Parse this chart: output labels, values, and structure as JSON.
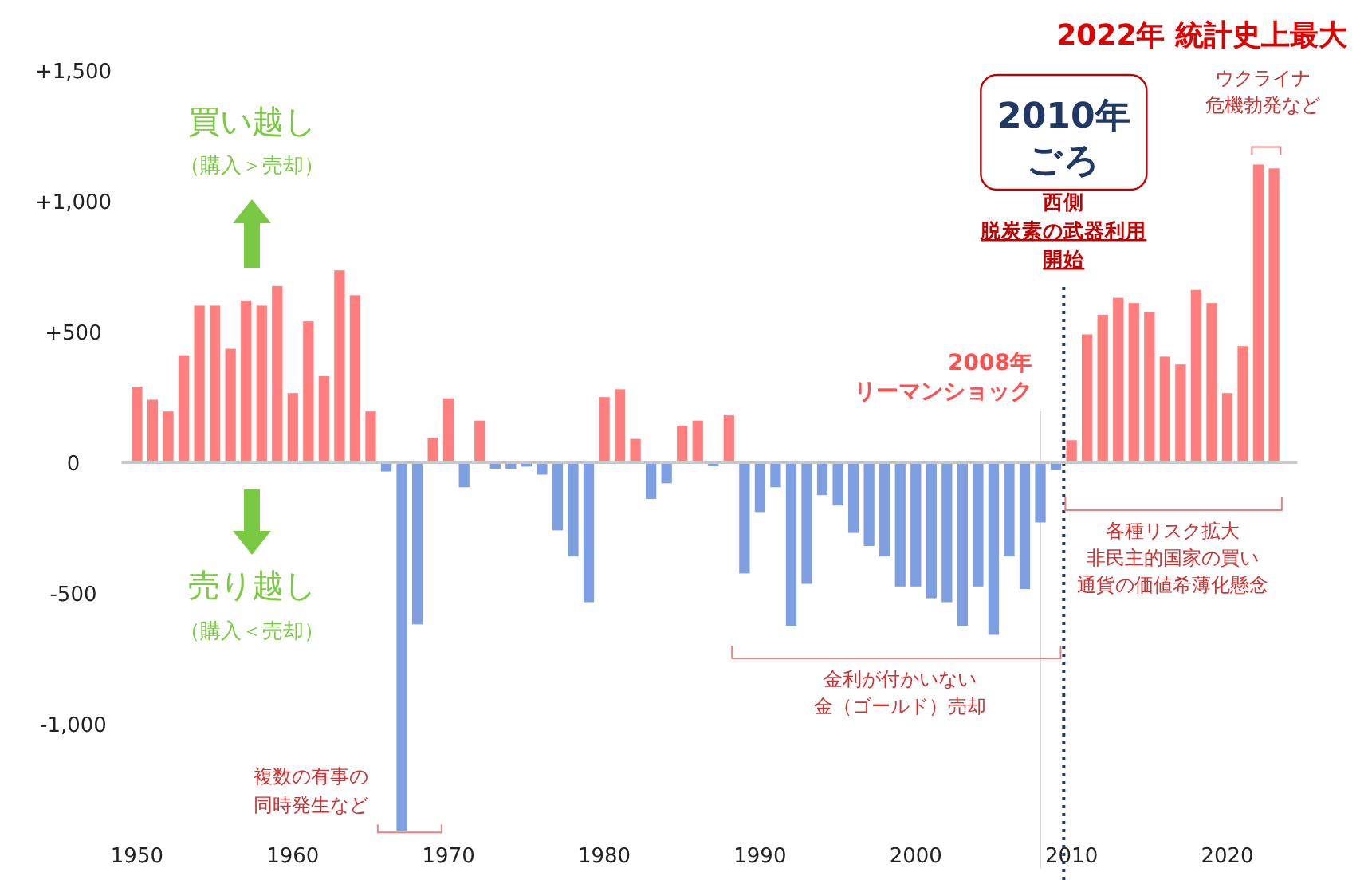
{
  "chart_data": {
    "type": "bar",
    "title": "2022年 統計史上最大",
    "x": [
      1950,
      1951,
      1952,
      1953,
      1954,
      1955,
      1956,
      1957,
      1958,
      1959,
      1960,
      1961,
      1962,
      1963,
      1964,
      1965,
      1966,
      1967,
      1968,
      1969,
      1970,
      1971,
      1972,
      1973,
      1974,
      1975,
      1976,
      1977,
      1978,
      1979,
      1980,
      1981,
      1982,
      1983,
      1984,
      1985,
      1986,
      1987,
      1988,
      1989,
      1990,
      1991,
      1992,
      1993,
      1994,
      1995,
      1996,
      1997,
      1998,
      1999,
      2000,
      2001,
      2002,
      2003,
      2004,
      2005,
      2006,
      2007,
      2008,
      2009,
      2010,
      2011,
      2012,
      2013,
      2014,
      2015,
      2016,
      2017,
      2018,
      2019,
      2020,
      2021,
      2022,
      2023
    ],
    "values": [
      290,
      240,
      195,
      410,
      600,
      600,
      435,
      620,
      600,
      675,
      265,
      540,
      330,
      735,
      640,
      195,
      -35,
      -1410,
      -620,
      95,
      245,
      -95,
      160,
      -24,
      -24,
      -16,
      -47,
      -260,
      -360,
      -535,
      250,
      280,
      90,
      -140,
      -80,
      140,
      160,
      -15,
      180,
      -425,
      -190,
      -95,
      -625,
      -465,
      -125,
      -165,
      -270,
      -320,
      -360,
      -475,
      -475,
      -520,
      -535,
      -625,
      -475,
      -660,
      -360,
      -485,
      -230,
      -30,
      85,
      490,
      565,
      630,
      610,
      575,
      405,
      375,
      660,
      610,
      265,
      445,
      1140,
      1125
    ],
    "colors": [
      "#ff7f7f",
      "#ff7f7f",
      "#ff7f7f",
      "#ff7f7f",
      "#ff7f7f",
      "#ff7f7f",
      "#ff7f7f",
      "#ff7f7f",
      "#ff7f7f",
      "#ff7f7f",
      "#ff7f7f",
      "#ff7f7f",
      "#ff7f7f",
      "#ff7f7f",
      "#ff7f7f",
      "#ff7f7f",
      "#7f9fe3",
      "#7f9fe3",
      "#7f9fe3",
      "#ff7f7f",
      "#ff7f7f",
      "#7f9fe3",
      "#ff7f7f",
      "#7f9fe3",
      "#7f9fe3",
      "#7f9fe3",
      "#7f9fe3",
      "#7f9fe3",
      "#7f9fe3",
      "#7f9fe3",
      "#ff7f7f",
      "#ff7f7f",
      "#ff7f7f",
      "#7f9fe3",
      "#7f9fe3",
      "#ff7f7f",
      "#ff7f7f",
      "#7f9fe3",
      "#ff7f7f",
      "#7f9fe3",
      "#7f9fe3",
      "#7f9fe3",
      "#7f9fe3",
      "#7f9fe3",
      "#7f9fe3",
      "#7f9fe3",
      "#7f9fe3",
      "#7f9fe3",
      "#7f9fe3",
      "#7f9fe3",
      "#7f9fe3",
      "#7f9fe3",
      "#7f9fe3",
      "#7f9fe3",
      "#7f9fe3",
      "#7f9fe3",
      "#7f9fe3",
      "#7f9fe3",
      "#7f9fe3",
      "#7f9fe3",
      "#ff7f7f",
      "#ff7f7f",
      "#ff7f7f",
      "#ff7f7f",
      "#ff7f7f",
      "#ff7f7f",
      "#ff7f7f",
      "#ff7f7f",
      "#ff7f7f",
      "#ff7f7f",
      "#ff7f7f",
      "#ff7f7f",
      "#ff7f7f",
      "#ff7f7f"
    ],
    "xlim": [
      1949,
      2024.5
    ],
    "xticks": [
      1950,
      1960,
      1970,
      1980,
      1990,
      2000,
      2010,
      2020
    ],
    "ylim": [
      -1420,
      1500
    ],
    "yticks": [
      {
        "value": 1500,
        "label": "+1,500"
      },
      {
        "value": 1000,
        "label": "+1,000"
      },
      {
        "value": 500,
        "label": "+500"
      },
      0,
      {
        "value": -500,
        "label": "-500"
      },
      {
        "value": -1000,
        "label": "-1,000"
      }
    ],
    "ref_lines": [
      {
        "axis": "x",
        "value": 2008,
        "label": "2008年リーマンショック",
        "color": "#d9d9d9",
        "line_style": "solid"
      },
      {
        "axis": "x",
        "value": 2009.5,
        "label": "2010年ごろ",
        "color": "#203864",
        "line_style": "dotted"
      }
    ],
    "annotations": [
      "買い越し",
      "（購入＞売却）",
      "売り越し",
      "（購入＜売却）",
      {
        "text": "複数の有事の同時発生など",
        "x": 1967.5,
        "y": -1410
      },
      "金利が付かいない金（ゴールド）売却",
      "各種リスク拡大非民主的国家の買い通貨の価値希薄化懸念",
      {
        "text": "ウクライナ危機勃発など",
        "x": 2022.5,
        "y": 1140
      },
      "西側脱炭素の武器利用開始"
    ]
  }
}
